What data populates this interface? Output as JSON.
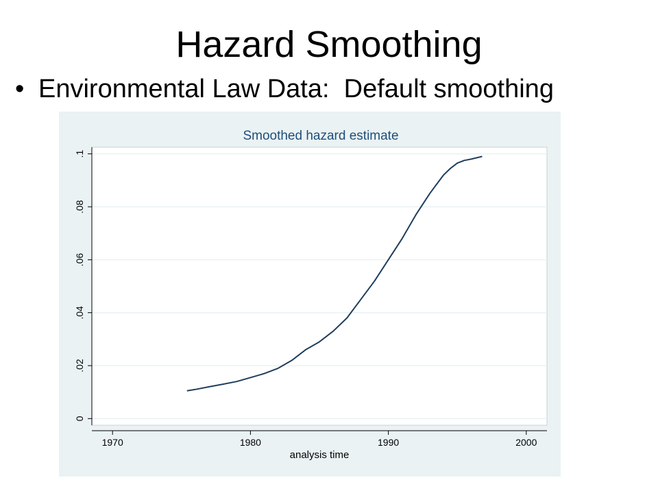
{
  "slide": {
    "title": "Hazard Smoothing",
    "bullet_symbol": "•",
    "bullet_text": "Environmental Law Data:  Default smoothing"
  },
  "colors": {
    "panel_background": "#eaf2f3",
    "plot_background": "#ffffff",
    "line": "#1f3d5c",
    "chart_title": "#1f4e79",
    "grid": "#eaf2f3"
  },
  "chart_data": {
    "type": "line",
    "title": "Smoothed hazard estimate",
    "xlabel": "analysis time",
    "ylabel": "",
    "xlim": [
      1968.5,
      2001.5
    ],
    "ylim": [
      -0.0025,
      0.1025
    ],
    "x_ticks": [
      1970,
      1980,
      1990,
      2000
    ],
    "x_tick_labels": [
      "1970",
      "1980",
      "1990",
      "2000"
    ],
    "y_ticks": [
      0,
      0.02,
      0.04,
      0.06,
      0.08,
      0.1
    ],
    "y_tick_labels": [
      "0",
      ".02",
      ".04",
      ".06",
      ".08",
      ".1"
    ],
    "grid": "horizontal",
    "series": [
      {
        "x": [
          1975.4,
          1976,
          1977,
          1978,
          1979,
          1980,
          1981,
          1982,
          1983,
          1984,
          1985,
          1986,
          1987,
          1988,
          1989,
          1990,
          1991,
          1992,
          1993,
          1993.5,
          1994,
          1994.5,
          1995,
          1995.5,
          1996,
          1996.8
        ],
        "y": [
          0.0105,
          0.011,
          0.012,
          0.013,
          0.014,
          0.0155,
          0.017,
          0.019,
          0.022,
          0.026,
          0.029,
          0.033,
          0.038,
          0.045,
          0.052,
          0.06,
          0.068,
          0.077,
          0.085,
          0.0885,
          0.092,
          0.0945,
          0.0965,
          0.0975,
          0.098,
          0.099
        ]
      }
    ]
  }
}
